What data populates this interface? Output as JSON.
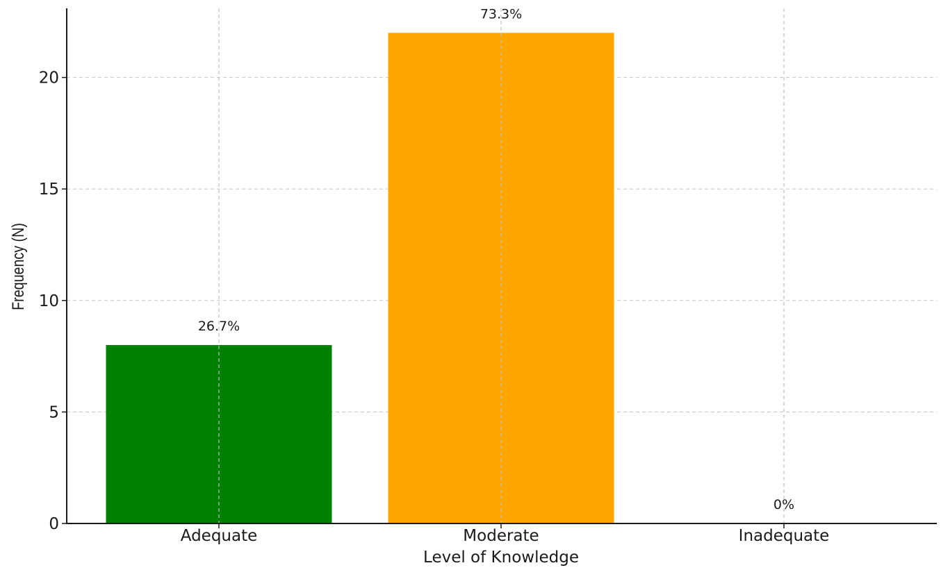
{
  "chart_data": {
    "type": "bar",
    "categories": [
      "Adequate",
      "Moderate",
      "Inadequate"
    ],
    "values": [
      8,
      22,
      0
    ],
    "data_labels": [
      "26.7%",
      "73.3%",
      "0%"
    ],
    "bar_colors": [
      "#008000",
      "#FFA500",
      "#cccccc"
    ],
    "title": "",
    "xlabel": "Level of Knowledge",
    "ylabel": "Frequency (N)",
    "ylim": [
      0,
      23.1
    ],
    "yticks": [
      "0",
      "5",
      "10",
      "15",
      "20"
    ],
    "grid": true,
    "legend": "none"
  }
}
